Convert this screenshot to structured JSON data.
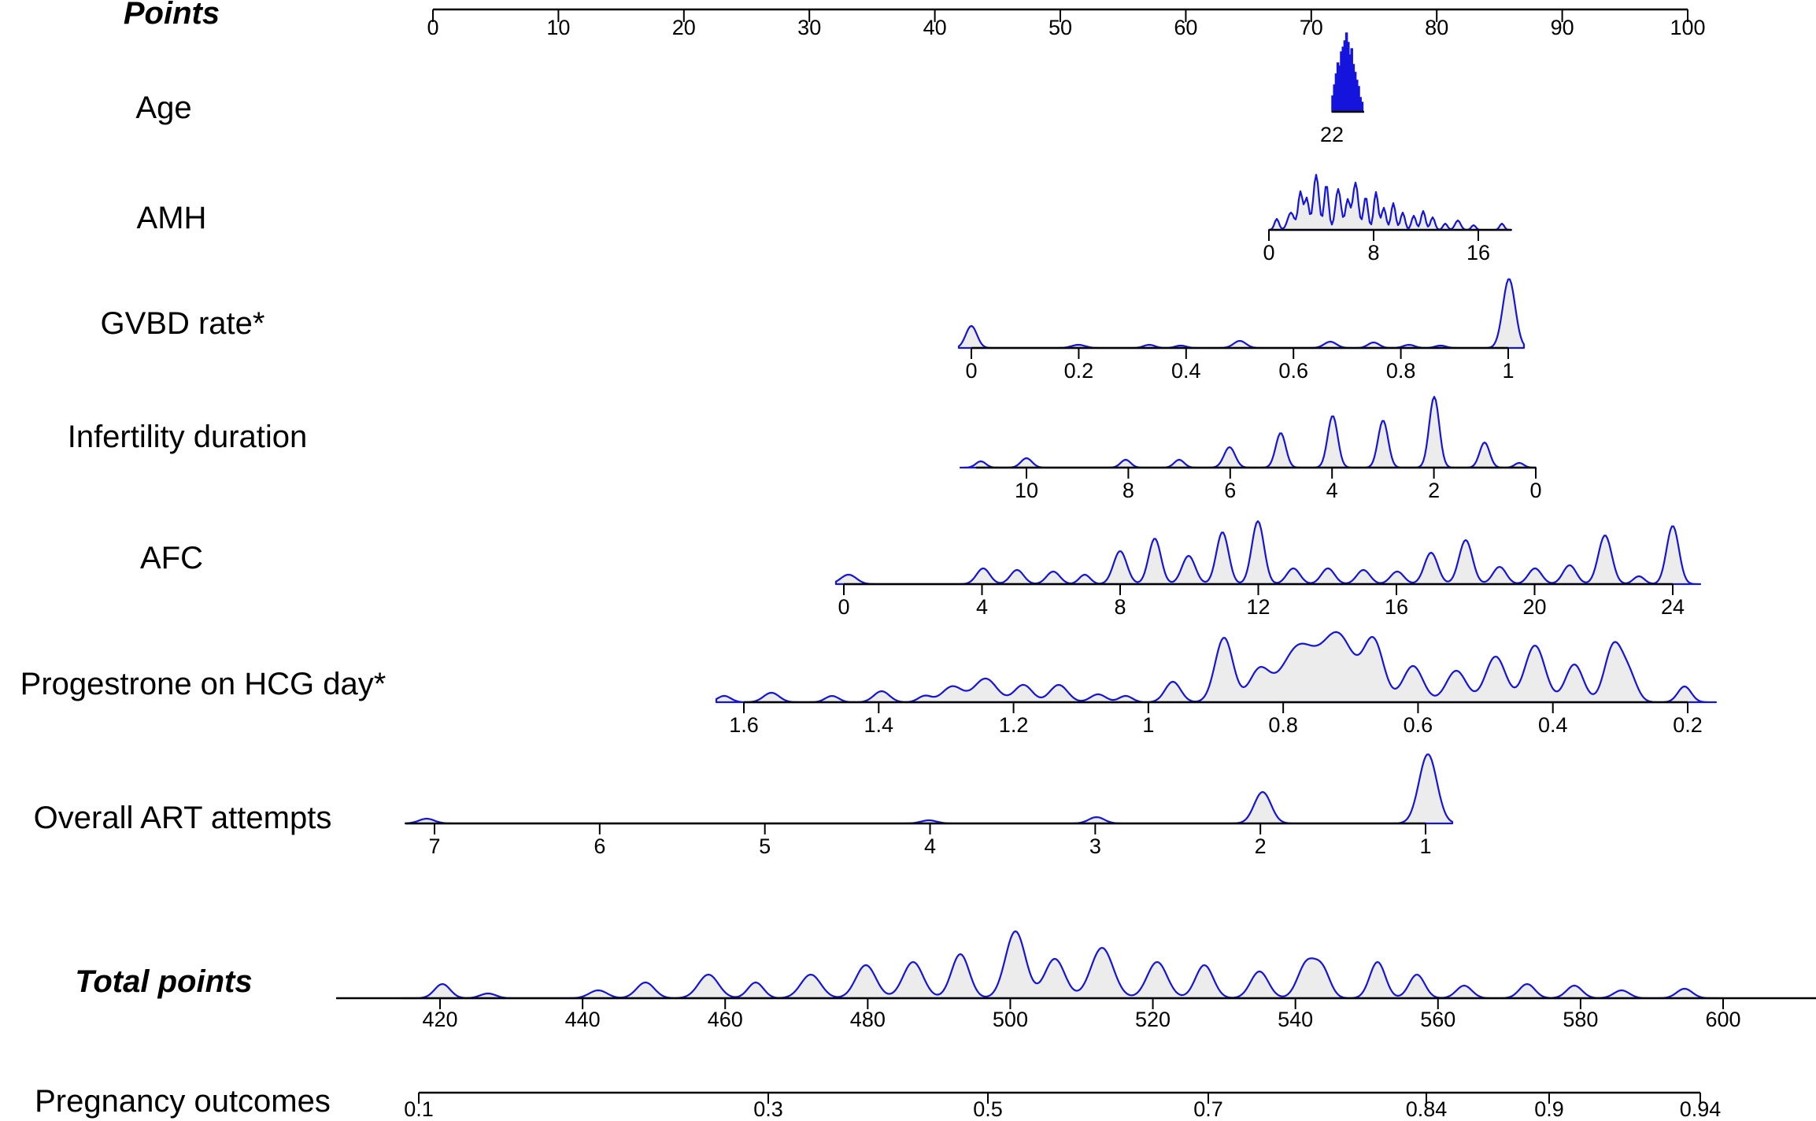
{
  "chart_data": {
    "type": "nomogram",
    "rows": [
      {
        "id": "points",
        "label": "Points",
        "style": "bold-italic",
        "tick_labels": [
          "0",
          "10",
          "20",
          "30",
          "40",
          "50",
          "60",
          "70",
          "80",
          "90",
          "100"
        ],
        "values": [
          0,
          10,
          20,
          30,
          40,
          50,
          60,
          70,
          80,
          90,
          100
        ]
      },
      {
        "id": "age",
        "label": "Age",
        "tick_labels": [
          "22"
        ],
        "values": [
          22
        ],
        "density_kind": "spike"
      },
      {
        "id": "amh",
        "label": "AMH",
        "tick_labels": [
          "0",
          "8",
          "16"
        ],
        "values": [
          0,
          8,
          16
        ],
        "range": [
          0,
          18.5
        ]
      },
      {
        "id": "gvbd",
        "label": "GVBD rate*",
        "tick_labels": [
          "0",
          "0.2",
          "0.4",
          "0.6",
          "0.8",
          "1"
        ],
        "values": [
          0,
          0.2,
          0.4,
          0.6,
          0.8,
          1
        ]
      },
      {
        "id": "infertility",
        "label": "Infertility duration",
        "tick_labels": [
          "10",
          "8",
          "6",
          "4",
          "2",
          "0"
        ],
        "values": [
          10,
          8,
          6,
          4,
          2,
          0
        ],
        "range": [
          11,
          0
        ]
      },
      {
        "id": "afc",
        "label": "AFC",
        "tick_labels": [
          "0",
          "4",
          "8",
          "12",
          "16",
          "20",
          "24"
        ],
        "values": [
          0,
          4,
          8,
          12,
          16,
          20,
          24
        ]
      },
      {
        "id": "progesterone",
        "label": "Progestrone on HCG day*",
        "tick_labels": [
          "1.6",
          "1.4",
          "1.2",
          "1",
          "0.8",
          "0.6",
          "0.4",
          "0.2"
        ],
        "values": [
          1.6,
          1.4,
          1.2,
          1,
          0.8,
          0.6,
          0.4,
          0.2
        ]
      },
      {
        "id": "art",
        "label": "Overall ART attempts",
        "tick_labels": [
          "7",
          "6",
          "5",
          "4",
          "3",
          "2",
          "1"
        ],
        "values": [
          7,
          6,
          5,
          4,
          3,
          2,
          1
        ]
      },
      {
        "id": "total",
        "label": "Total points",
        "style": "bold-italic",
        "tick_labels": [
          "420",
          "440",
          "460",
          "480",
          "500",
          "520",
          "540",
          "560",
          "580",
          "600"
        ],
        "values": [
          420,
          440,
          460,
          480,
          500,
          520,
          540,
          560,
          580,
          600
        ]
      },
      {
        "id": "outcome",
        "label": "Pregnancy outcomes",
        "tick_labels": [
          "0.1",
          "0.3",
          "0.5",
          "0.7",
          "0.84",
          "0.9",
          "0.94"
        ],
        "values": [
          0.1,
          0.3,
          0.5,
          0.7,
          0.84,
          0.9,
          0.94
        ]
      }
    ],
    "colors": {
      "density_line": "#1414dc",
      "density_fill": "#ececec",
      "axis": "#000000"
    }
  }
}
